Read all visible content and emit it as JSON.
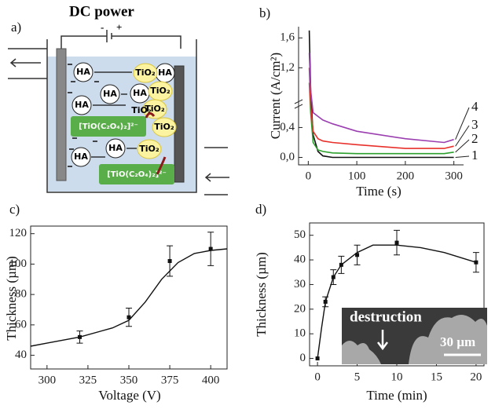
{
  "diagram": {
    "label": "a)",
    "title": "DC power",
    "minus": "-",
    "plus": "+",
    "ha": [
      "HA",
      "HA",
      "HA",
      "HA",
      "HA",
      "HA",
      "HA"
    ],
    "tio2": [
      "TiO₂",
      "TiO₂",
      "TiO₂",
      "TiO₂",
      "TiO₂",
      "TiO₂"
    ],
    "complex": [
      "[TiO(C₂O₄)₂]²⁻",
      "[TiO(C₂O₄)₂]²⁻"
    ]
  },
  "chart_data": [
    {
      "type": "line",
      "label": "b)",
      "xlabel": "Time (s)",
      "ylabel": "Current (A/cm²)",
      "x": [
        2,
        5,
        10,
        20,
        30,
        50,
        100,
        200,
        280,
        300
      ],
      "series": [
        {
          "name": "1",
          "color": "#111111",
          "values": [
            1.7,
            0.9,
            0.3,
            0.08,
            0.02,
            0.0,
            0.0,
            0.0,
            0.0,
            0.0
          ]
        },
        {
          "name": "2",
          "color": "#2ca02c",
          "values": [
            1.0,
            0.6,
            0.2,
            0.1,
            0.08,
            0.06,
            0.05,
            0.05,
            0.05,
            0.07
          ]
        },
        {
          "name": "3",
          "color": "#e8302a",
          "values": [
            1.2,
            0.7,
            0.35,
            0.25,
            0.22,
            0.2,
            0.17,
            0.12,
            0.12,
            0.15
          ]
        },
        {
          "name": "4",
          "color": "#9b3fb0",
          "values": [
            1.4,
            0.9,
            0.6,
            0.55,
            0.5,
            0.45,
            0.35,
            0.25,
            0.2,
            0.24
          ]
        }
      ],
      "xlim": [
        -20,
        320
      ],
      "ylim": [
        -0.1,
        1.75
      ],
      "xticks": [
        0,
        100,
        200,
        300
      ],
      "yticks": [
        {
          "value": 0,
          "label": "0,0"
        },
        {
          "value": 0.4,
          "label": "0,4"
        },
        {
          "value": 1.2,
          "label": "1,2"
        },
        {
          "value": 1.6,
          "label": "1,6"
        }
      ],
      "box": false
    },
    {
      "type": "scatter",
      "label": "c)",
      "xlabel": "Voltage (V)",
      "ylabel": "Thickness (µm)",
      "x": [
        320,
        350,
        375,
        400
      ],
      "values": [
        52,
        65,
        102,
        110
      ],
      "errors": [
        4,
        6,
        10,
        11
      ],
      "color": "#111111",
      "curve_x": [
        290,
        300,
        320,
        340,
        350,
        360,
        370,
        380,
        390,
        400,
        410
      ],
      "curve_values": [
        46,
        48,
        52,
        58,
        63,
        75,
        90,
        101,
        107,
        109,
        110
      ],
      "xlim": [
        290,
        410
      ],
      "ylim": [
        31,
        125
      ],
      "xticks": [
        300,
        325,
        350,
        375,
        400
      ],
      "yticks": [
        40,
        60,
        80,
        100,
        120
      ],
      "box": true
    },
    {
      "type": "scatter",
      "label": "d)",
      "xlabel": "Time (min)",
      "ylabel": "Thickness (µm)",
      "x": [
        0,
        1,
        2,
        3,
        5,
        10,
        20
      ],
      "values": [
        0,
        23,
        33,
        38,
        42,
        47,
        39
      ],
      "errors": [
        null,
        2,
        3,
        3.5,
        4,
        5,
        4
      ],
      "color": "#111111",
      "curve_x": [
        0,
        0.5,
        1,
        2,
        3,
        5,
        7,
        10,
        13,
        16,
        20
      ],
      "curve_values": [
        0,
        12,
        23,
        33,
        38,
        43,
        46,
        46,
        45,
        43,
        39
      ],
      "xlim": [
        -1,
        21
      ],
      "ylim": [
        -3,
        55
      ],
      "xticks": [
        0,
        5,
        10,
        15,
        20
      ],
      "yticks": [
        0,
        10,
        20,
        30,
        40,
        50
      ],
      "box": true,
      "inset": {
        "text": "destruction",
        "scale": "30 µm"
      }
    }
  ]
}
